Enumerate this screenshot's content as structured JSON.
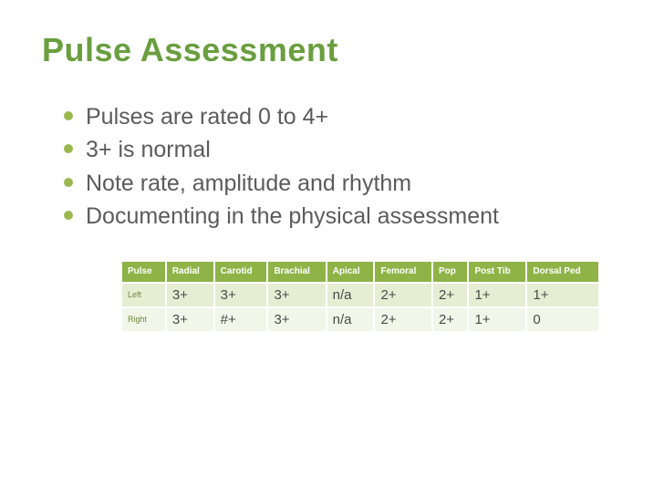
{
  "slide": {
    "title": "Pulse Assessment",
    "title_color": "#6a9e3f",
    "bullet_color": "#9ab84f",
    "bullet_text_color": "#5b5b5b",
    "bullets": [
      "Pulses are rated 0 to 4+",
      "3+ is normal",
      "Note rate, amplitude and rhythm",
      " Documenting in the physical assessment"
    ],
    "table": {
      "header_bg": "#8fb347",
      "header_text_color": "#ffffff",
      "row_odd_bg": "#e6edd3",
      "row_even_bg": "#f2f6e9",
      "rowlabel_color": "#6e8a3e",
      "cell_text_color": "#4a4a4a",
      "columns": [
        "Pulse",
        "Radial",
        "Carotid",
        "Brachial",
        "Apical",
        "Femoral",
        "Pop",
        "Post Tib",
        "Dorsal Ped"
      ],
      "rows": [
        {
          "label": "Left",
          "values": [
            "3+",
            "3+",
            "3+",
            "n/a",
            "2+",
            "2+",
            "1+",
            "1+"
          ]
        },
        {
          "label": "Right",
          "values": [
            "3+",
            "#+",
            "3+",
            "n/a",
            "2+",
            "2+",
            "1+",
            "0"
          ]
        }
      ]
    }
  }
}
